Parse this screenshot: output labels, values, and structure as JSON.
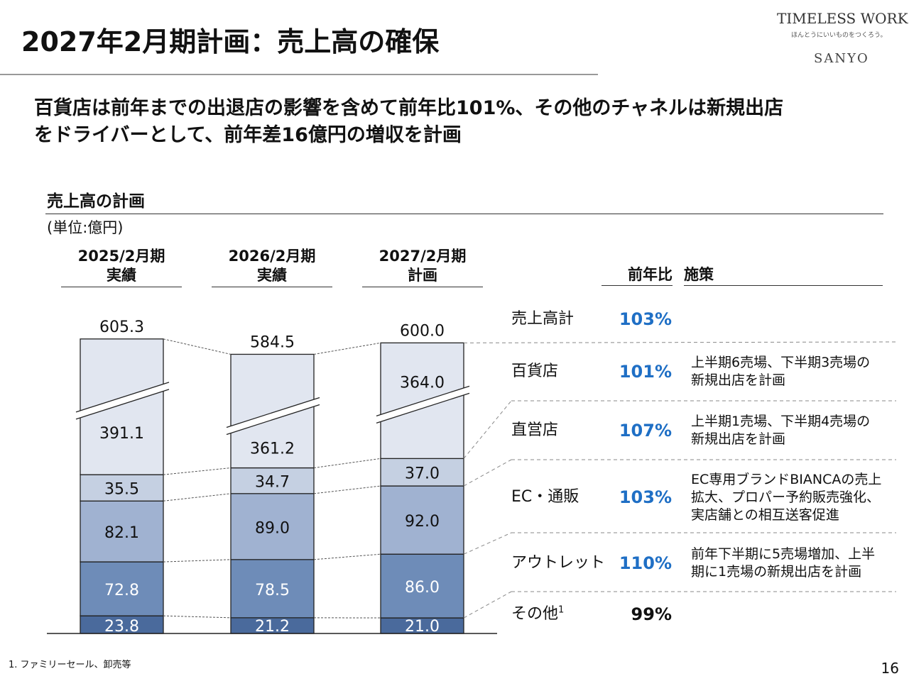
{
  "title": "2027年2月期計画：売上高の確保",
  "logo": {
    "line1": "TIMELESS WORK.",
    "line2": "ほんとうにいいものをつくろう。",
    "line3": "SANYO"
  },
  "lead": [
    "百貨店は前年までの出退店の影響を含めて前年比101%、その他のチャネルは新規出店",
    "をドライバーとして、前年差16億円の増収を計画"
  ],
  "section_title": "売上高の計画",
  "unit": "(単位:億円)",
  "chart_data": {
    "type": "bar",
    "stacked": true,
    "axis_break": true,
    "categories": [
      [
        "2025/2月期",
        "実績"
      ],
      [
        "2026/2月期",
        "実績"
      ],
      [
        "2027/2月期",
        "計画"
      ]
    ],
    "totals": [
      "605.3",
      "584.5",
      "600.0"
    ],
    "series": [
      {
        "name": "その他",
        "values": [
          23.8,
          21.2,
          21.0
        ],
        "color": "#4a6a9c",
        "labels": [
          "23.8",
          "21.2",
          "21.0"
        ]
      },
      {
        "name": "アウトレット",
        "values": [
          72.8,
          78.5,
          86.0
        ],
        "color": "#6e8cb8",
        "labels": [
          "72.8",
          "78.5",
          "86.0"
        ]
      },
      {
        "name": "EC・通販",
        "values": [
          82.1,
          89.0,
          92.0
        ],
        "color": "#a0b2d1",
        "labels": [
          "82.1",
          "89.0",
          "92.0"
        ]
      },
      {
        "name": "直営店",
        "values": [
          35.5,
          34.7,
          37.0
        ],
        "color": "#c5d0e2",
        "labels": [
          "35.5",
          "34.7",
          "37.0"
        ]
      },
      {
        "name": "百貨店",
        "values": [
          391.1,
          361.2,
          364.0
        ],
        "color": "#e1e6f0",
        "labels": [
          "391.1",
          "361.2",
          "364.0"
        ]
      }
    ]
  },
  "table": {
    "headers": {
      "yoy": "前年比",
      "measures": "施策"
    },
    "rows": [
      {
        "label": "売上高計",
        "yoy": "103%",
        "note": []
      },
      {
        "label": "百貨店",
        "yoy": "101%",
        "note": [
          "上半期6売場、下半期3売場の",
          "新規出店を計画"
        ]
      },
      {
        "label": "直営店",
        "yoy": "107%",
        "note": [
          "上半期1売場、下半期4売場の",
          "新規出店を計画"
        ]
      },
      {
        "label": "EC・通販",
        "yoy": "103%",
        "note": [
          "EC専用ブランドBIANCAの売上",
          "拡大、プロパー予約販売強化、",
          "実店舗との相互送客促進"
        ]
      },
      {
        "label": "アウトレット",
        "yoy": "110%",
        "note": [
          "前年下半期に5売場増加、上半",
          "期に1売場の新規出店を計画"
        ]
      },
      {
        "label": "その他",
        "sup": "1",
        "yoy": "99%",
        "note": []
      }
    ],
    "accent": "#1f6fc5"
  },
  "footnote": "1. ファミリーセール、卸売等",
  "page_number": "16"
}
